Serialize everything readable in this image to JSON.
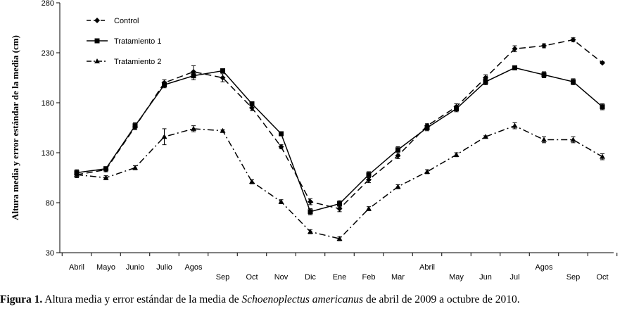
{
  "chart_data": {
    "type": "line",
    "ylabel": "Altura media y error estándar de la media (cm)",
    "xlabel": "",
    "ylim": [
      30,
      280
    ],
    "yticks": [
      30,
      80,
      130,
      180,
      230,
      280
    ],
    "grid": false,
    "legend_position": "top-left",
    "categories": [
      "Abril",
      "Mayo",
      "Junio",
      "Julio",
      "Agos",
      "Sep",
      "Oct",
      "Nov",
      "Dic",
      "Ene",
      "Feb",
      "Mar",
      "Abril",
      "May",
      "Jun",
      "Jul",
      "Agos",
      "Sep",
      "Oct"
    ],
    "series": [
      {
        "name": "Control",
        "line_style": "dash",
        "marker": "diamond",
        "values": [
          108,
          113,
          156,
          200,
          211,
          205,
          175,
          136,
          81,
          74,
          103,
          127,
          157,
          176,
          205,
          234,
          237,
          243,
          220
        ],
        "errors": [
          3,
          2,
          3,
          3,
          6,
          4,
          3,
          2,
          3,
          3,
          3,
          3,
          2,
          3,
          3,
          3,
          2,
          2,
          1
        ]
      },
      {
        "name": "Tratamiento 1",
        "line_style": "solid",
        "marker": "square",
        "values": [
          110,
          114,
          157,
          198,
          207,
          212,
          179,
          149,
          71,
          79,
          108,
          133,
          155,
          174,
          201,
          215,
          208,
          201,
          176
        ],
        "errors": [
          3,
          2,
          3,
          3,
          4,
          2,
          2,
          2,
          3,
          3,
          3,
          3,
          3,
          3,
          3,
          2,
          3,
          3,
          3
        ]
      },
      {
        "name": "Tratamiento 2",
        "line_style": "dashdot",
        "marker": "triangle",
        "values": [
          108,
          105,
          115,
          146,
          154,
          152,
          101,
          81,
          51,
          44,
          74,
          96,
          111,
          128,
          146,
          157,
          143,
          143,
          126
        ],
        "errors": [
          2,
          2,
          2,
          8,
          3,
          1,
          2,
          2,
          2,
          2,
          2,
          2,
          2,
          2,
          1,
          3,
          3,
          3,
          3
        ]
      }
    ]
  },
  "caption": {
    "figure_label": "Figura 1.",
    "text_before": " Altura media y error estándar de la media de ",
    "species": "Schoenoplectus americanus",
    "text_after": " de abril de 2009 a octubre de 2010."
  }
}
